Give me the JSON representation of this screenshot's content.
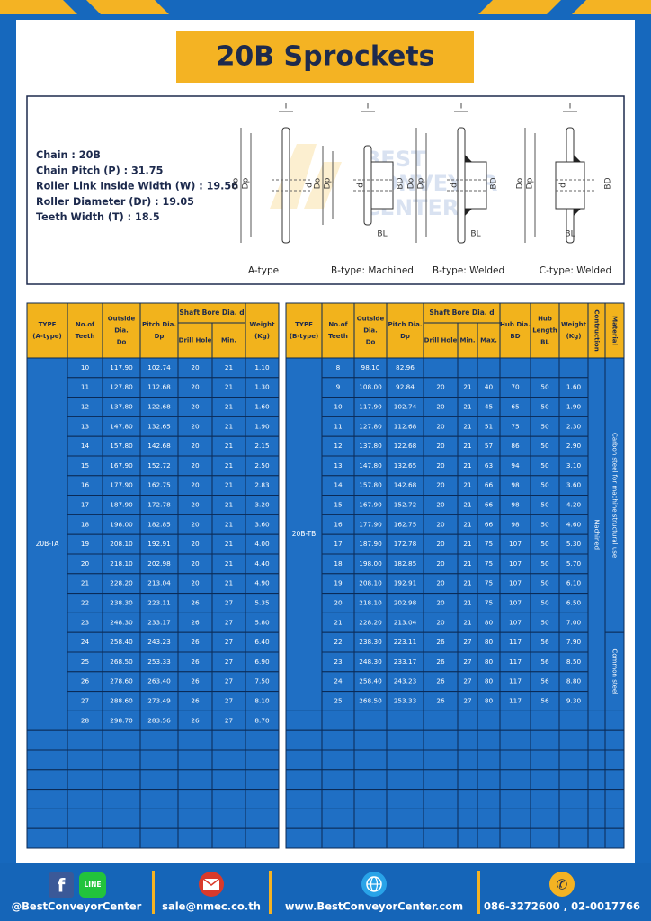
{
  "header": {
    "title": "20B Sprockets"
  },
  "specs": [
    "Chain : 20B",
    "Chain Pitch (P) : 31.75",
    "Roller Link Inside Width (W) : 19.56",
    "Roller Diameter (Dr) : 19.05",
    "Teeth Width (T) : 18.5"
  ],
  "watermark": [
    "BEST",
    "CONVEYOR",
    "CENTER"
  ],
  "diagrams": [
    {
      "caption": "A-type",
      "labels": [
        "T",
        "Do",
        "Dp",
        "d"
      ]
    },
    {
      "caption": "B-type: Machined",
      "labels": [
        "T",
        "Do",
        "Dp",
        "d",
        "BD",
        "BL"
      ]
    },
    {
      "caption": "B-type: Welded",
      "labels": [
        "T",
        "Do",
        "Dp",
        "d",
        "BD",
        "BL"
      ]
    },
    {
      "caption": "C-type: Welded",
      "labels": [
        "T",
        "Do",
        "Dp",
        "d",
        "BD",
        "BL"
      ]
    }
  ],
  "table_a": {
    "headers": [
      {
        "lines": [
          "TYPE",
          "(A-type)"
        ]
      },
      {
        "lines": [
          "No.of",
          "Teeth"
        ]
      },
      {
        "lines": [
          "Outside",
          "Dia.",
          "Do"
        ]
      },
      {
        "lines": [
          "Pitch Dia.",
          "Dp"
        ]
      },
      {
        "label": "Shaft Bore Dia. d",
        "sub": [
          "Drill Hole",
          "Min."
        ]
      },
      {
        "lines": [
          "Weight",
          "(Kg)"
        ]
      }
    ],
    "type_label": "20B-TA",
    "rows": [
      [
        "10",
        "117.90",
        "102.74",
        "20",
        "21",
        "1.10"
      ],
      [
        "11",
        "127.80",
        "112.68",
        "20",
        "21",
        "1.30"
      ],
      [
        "12",
        "137.80",
        "122.68",
        "20",
        "21",
        "1.60"
      ],
      [
        "13",
        "147.80",
        "132.65",
        "20",
        "21",
        "1.90"
      ],
      [
        "14",
        "157.80",
        "142.68",
        "20",
        "21",
        "2.15"
      ],
      [
        "15",
        "167.90",
        "152.72",
        "20",
        "21",
        "2.50"
      ],
      [
        "16",
        "177.90",
        "162.75",
        "20",
        "21",
        "2.83"
      ],
      [
        "17",
        "187.90",
        "172.78",
        "20",
        "21",
        "3.20"
      ],
      [
        "18",
        "198.00",
        "182.85",
        "20",
        "21",
        "3.60"
      ],
      [
        "19",
        "208.10",
        "192.91",
        "20",
        "21",
        "4.00"
      ],
      [
        "20",
        "218.10",
        "202.98",
        "20",
        "21",
        "4.40"
      ],
      [
        "21",
        "228.20",
        "213.04",
        "20",
        "21",
        "4.90"
      ],
      [
        "22",
        "238.30",
        "223.11",
        "26",
        "27",
        "5.35"
      ],
      [
        "23",
        "248.30",
        "233.17",
        "26",
        "27",
        "5.80"
      ],
      [
        "24",
        "258.40",
        "243.23",
        "26",
        "27",
        "6.40"
      ],
      [
        "25",
        "268.50",
        "253.33",
        "26",
        "27",
        "6.90"
      ],
      [
        "26",
        "278.60",
        "263.40",
        "26",
        "27",
        "7.50"
      ],
      [
        "27",
        "288.60",
        "273.49",
        "26",
        "27",
        "8.10"
      ],
      [
        "28",
        "298.70",
        "283.56",
        "26",
        "27",
        "8.70"
      ]
    ]
  },
  "table_b": {
    "headers": [
      {
        "lines": [
          "TYPE",
          "(B-type)"
        ]
      },
      {
        "lines": [
          "No.of",
          "Teeth"
        ]
      },
      {
        "lines": [
          "Outside",
          "Dia.",
          "Do"
        ]
      },
      {
        "lines": [
          "Pitch Dia.",
          "Dp"
        ]
      },
      {
        "label": "Shaft Bore Dia. d",
        "sub": [
          "Drill Hole",
          "Min.",
          "Max."
        ]
      },
      {
        "lines": [
          "Hub Dia.",
          "BD"
        ]
      },
      {
        "lines": [
          "Hub",
          "Length",
          "BL"
        ]
      },
      {
        "lines": [
          "Weight",
          "(Kg)"
        ]
      },
      {
        "lines": [
          "Contruction"
        ],
        "vertical": true
      },
      {
        "lines": [
          "Material"
        ],
        "vertical": true
      }
    ],
    "type_label": "20B-TB",
    "construction": "Machined",
    "material": [
      "Carbon steel for machine structural use",
      "Common steel"
    ],
    "rows": [
      [
        "8",
        "98.10",
        "82.96",
        null,
        null,
        null,
        null,
        null,
        null
      ],
      [
        "9",
        "108.00",
        "92.84",
        "20",
        "21",
        "40",
        "70",
        "50",
        "1.60"
      ],
      [
        "10",
        "117.90",
        "102.74",
        "20",
        "21",
        "45",
        "65",
        "50",
        "1.90"
      ],
      [
        "11",
        "127.80",
        "112.68",
        "20",
        "21",
        "51",
        "75",
        "50",
        "2.30"
      ],
      [
        "12",
        "137.80",
        "122.68",
        "20",
        "21",
        "57",
        "86",
        "50",
        "2.90"
      ],
      [
        "13",
        "147.80",
        "132.65",
        "20",
        "21",
        "63",
        "94",
        "50",
        "3.10"
      ],
      [
        "14",
        "157.80",
        "142.68",
        "20",
        "21",
        "66",
        "98",
        "50",
        "3.60"
      ],
      [
        "15",
        "167.90",
        "152.72",
        "20",
        "21",
        "66",
        "98",
        "50",
        "4.20"
      ],
      [
        "16",
        "177.90",
        "162.75",
        "20",
        "21",
        "66",
        "98",
        "50",
        "4.60"
      ],
      [
        "17",
        "187.90",
        "172.78",
        "20",
        "21",
        "75",
        "107",
        "50",
        "5.30"
      ],
      [
        "18",
        "198.00",
        "182.85",
        "20",
        "21",
        "75",
        "107",
        "50",
        "5.70"
      ],
      [
        "19",
        "208.10",
        "192.91",
        "20",
        "21",
        "75",
        "107",
        "50",
        "6.10"
      ],
      [
        "20",
        "218.10",
        "202.98",
        "20",
        "21",
        "75",
        "107",
        "50",
        "6.50"
      ],
      [
        "21",
        "228.20",
        "213.04",
        "20",
        "21",
        "80",
        "107",
        "50",
        "7.00"
      ],
      [
        "22",
        "238.30",
        "223.11",
        "26",
        "27",
        "80",
        "117",
        "56",
        "7.90"
      ],
      [
        "23",
        "248.30",
        "233.17",
        "26",
        "27",
        "80",
        "117",
        "56",
        "8.50"
      ],
      [
        "24",
        "258.40",
        "243.23",
        "26",
        "27",
        "80",
        "117",
        "56",
        "8.80"
      ],
      [
        "25",
        "268.50",
        "253.33",
        "26",
        "27",
        "80",
        "117",
        "56",
        "9.30"
      ]
    ]
  },
  "footer": {
    "line_icon": "LINE",
    "contacts": [
      "@BestConveyorCenter",
      "sale@nmec.co.th",
      "www.BestConveyorCenter.com",
      "086-3272600 , 02-0017766"
    ]
  }
}
